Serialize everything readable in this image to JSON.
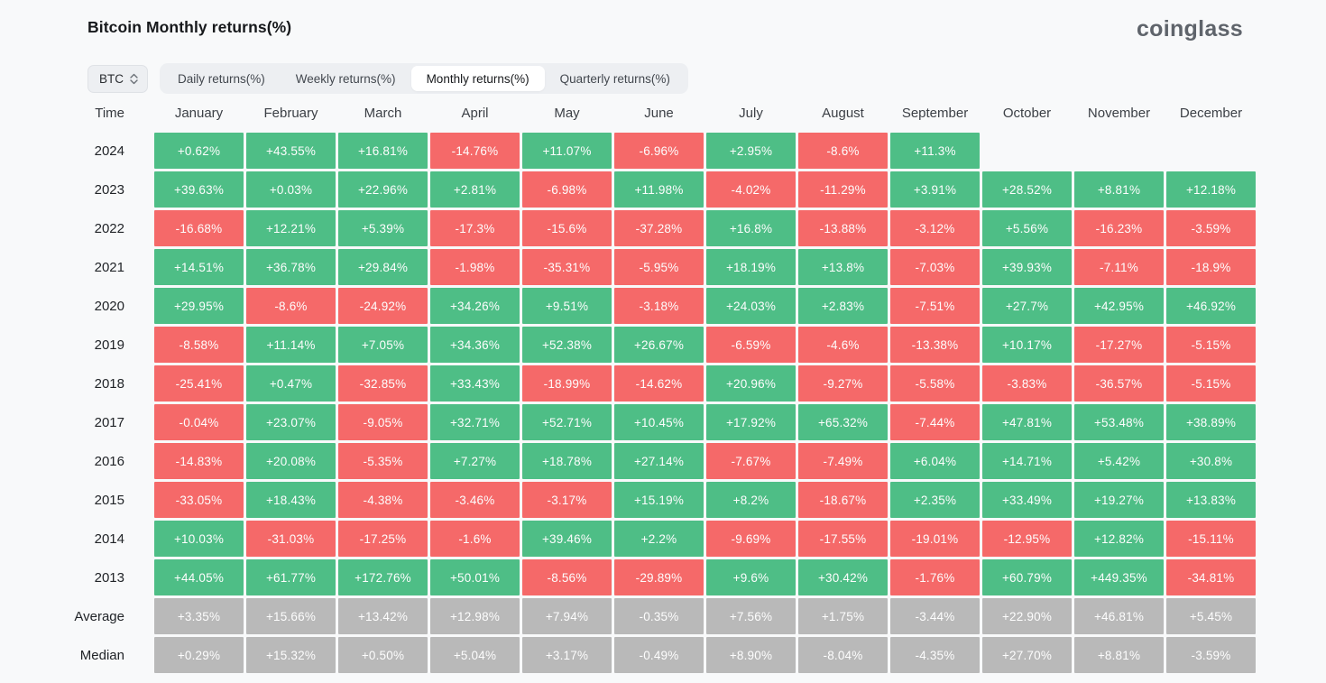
{
  "page": {
    "title": "Bitcoin Monthly returns(%)",
    "brand": "coinglass"
  },
  "controls": {
    "symbol": "BTC",
    "tabs": [
      {
        "label": "Daily returns(%)",
        "active": false
      },
      {
        "label": "Weekly returns(%)",
        "active": false
      },
      {
        "label": "Monthly returns(%)",
        "active": true
      },
      {
        "label": "Quarterly returns(%)",
        "active": false
      }
    ]
  },
  "colors": {
    "positive": "#4ebe86",
    "negative": "#f56969",
    "summary": "#b9b9b9",
    "background": "#f8f9fa"
  },
  "table": {
    "time_header": "Time",
    "months": [
      "January",
      "February",
      "March",
      "April",
      "May",
      "June",
      "July",
      "August",
      "September",
      "October",
      "November",
      "December"
    ],
    "rows": [
      {
        "label": "2024",
        "summary": false,
        "cells": [
          "+0.62%",
          "+43.55%",
          "+16.81%",
          "-14.76%",
          "+11.07%",
          "-6.96%",
          "+2.95%",
          "-8.6%",
          "+11.3%",
          "",
          "",
          ""
        ]
      },
      {
        "label": "2023",
        "summary": false,
        "cells": [
          "+39.63%",
          "+0.03%",
          "+22.96%",
          "+2.81%",
          "-6.98%",
          "+11.98%",
          "-4.02%",
          "-11.29%",
          "+3.91%",
          "+28.52%",
          "+8.81%",
          "+12.18%"
        ]
      },
      {
        "label": "2022",
        "summary": false,
        "cells": [
          "-16.68%",
          "+12.21%",
          "+5.39%",
          "-17.3%",
          "-15.6%",
          "-37.28%",
          "+16.8%",
          "-13.88%",
          "-3.12%",
          "+5.56%",
          "-16.23%",
          "-3.59%"
        ]
      },
      {
        "label": "2021",
        "summary": false,
        "cells": [
          "+14.51%",
          "+36.78%",
          "+29.84%",
          "-1.98%",
          "-35.31%",
          "-5.95%",
          "+18.19%",
          "+13.8%",
          "-7.03%",
          "+39.93%",
          "-7.11%",
          "-18.9%"
        ]
      },
      {
        "label": "2020",
        "summary": false,
        "cells": [
          "+29.95%",
          "-8.6%",
          "-24.92%",
          "+34.26%",
          "+9.51%",
          "-3.18%",
          "+24.03%",
          "+2.83%",
          "-7.51%",
          "+27.7%",
          "+42.95%",
          "+46.92%"
        ]
      },
      {
        "label": "2019",
        "summary": false,
        "cells": [
          "-8.58%",
          "+11.14%",
          "+7.05%",
          "+34.36%",
          "+52.38%",
          "+26.67%",
          "-6.59%",
          "-4.6%",
          "-13.38%",
          "+10.17%",
          "-17.27%",
          "-5.15%"
        ]
      },
      {
        "label": "2018",
        "summary": false,
        "cells": [
          "-25.41%",
          "+0.47%",
          "-32.85%",
          "+33.43%",
          "-18.99%",
          "-14.62%",
          "+20.96%",
          "-9.27%",
          "-5.58%",
          "-3.83%",
          "-36.57%",
          "-5.15%"
        ]
      },
      {
        "label": "2017",
        "summary": false,
        "cells": [
          "-0.04%",
          "+23.07%",
          "-9.05%",
          "+32.71%",
          "+52.71%",
          "+10.45%",
          "+17.92%",
          "+65.32%",
          "-7.44%",
          "+47.81%",
          "+53.48%",
          "+38.89%"
        ]
      },
      {
        "label": "2016",
        "summary": false,
        "cells": [
          "-14.83%",
          "+20.08%",
          "-5.35%",
          "+7.27%",
          "+18.78%",
          "+27.14%",
          "-7.67%",
          "-7.49%",
          "+6.04%",
          "+14.71%",
          "+5.42%",
          "+30.8%"
        ]
      },
      {
        "label": "2015",
        "summary": false,
        "cells": [
          "-33.05%",
          "+18.43%",
          "-4.38%",
          "-3.46%",
          "-3.17%",
          "+15.19%",
          "+8.2%",
          "-18.67%",
          "+2.35%",
          "+33.49%",
          "+19.27%",
          "+13.83%"
        ]
      },
      {
        "label": "2014",
        "summary": false,
        "cells": [
          "+10.03%",
          "-31.03%",
          "-17.25%",
          "-1.6%",
          "+39.46%",
          "+2.2%",
          "-9.69%",
          "-17.55%",
          "-19.01%",
          "-12.95%",
          "+12.82%",
          "-15.11%"
        ]
      },
      {
        "label": "2013",
        "summary": false,
        "cells": [
          "+44.05%",
          "+61.77%",
          "+172.76%",
          "+50.01%",
          "-8.56%",
          "-29.89%",
          "+9.6%",
          "+30.42%",
          "-1.76%",
          "+60.79%",
          "+449.35%",
          "-34.81%"
        ]
      },
      {
        "label": "Average",
        "summary": true,
        "cells": [
          "+3.35%",
          "+15.66%",
          "+13.42%",
          "+12.98%",
          "+7.94%",
          "-0.35%",
          "+7.56%",
          "+1.75%",
          "-3.44%",
          "+22.90%",
          "+46.81%",
          "+5.45%"
        ]
      },
      {
        "label": "Median",
        "summary": true,
        "cells": [
          "+0.29%",
          "+15.32%",
          "+0.50%",
          "+5.04%",
          "+3.17%",
          "-0.49%",
          "+8.90%",
          "-8.04%",
          "-4.35%",
          "+27.70%",
          "+8.81%",
          "-3.59%"
        ]
      }
    ]
  }
}
